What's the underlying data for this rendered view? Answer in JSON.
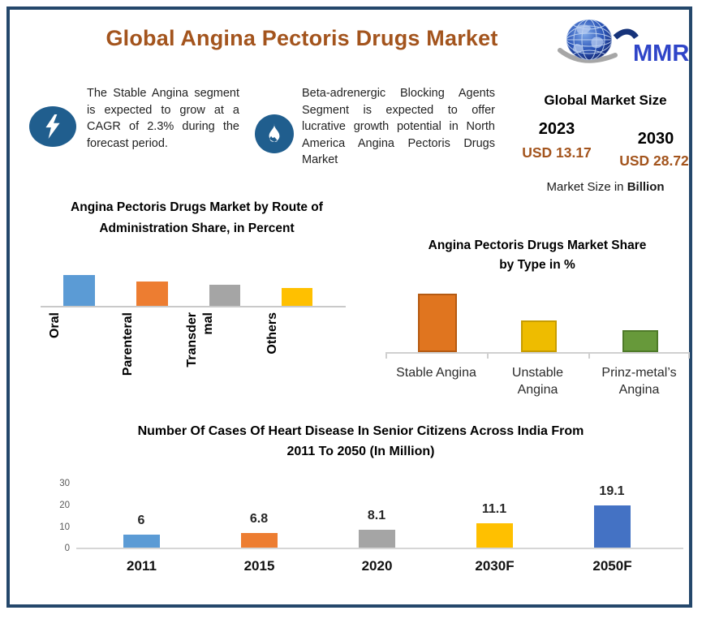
{
  "page": {
    "title": "Global Angina Pectoris Drugs Market",
    "border_color": "#24476b",
    "accent_color": "#a3541d"
  },
  "logo": {
    "text": "MMR",
    "icon": "globe-icon"
  },
  "highlights": [
    {
      "icon": "lightning-icon",
      "text": "The Stable Angina segment is expected to grow at a CAGR of 2.3% during the forecast period."
    },
    {
      "icon": "flame-icon",
      "text": "Beta-adrenergic Blocking Agents Segment is expected to offer lucrative growth potential in North America Angina Pectoris Drugs Market"
    }
  ],
  "market_size": {
    "title": "Global Market Size",
    "years": [
      {
        "year": "2023",
        "value": "USD 13.17"
      },
      {
        "year": "2030",
        "value": "USD 28.72"
      }
    ],
    "note_prefix": "Market Size in ",
    "note_bold": "Billion"
  },
  "chart_data": [
    {
      "type": "bar",
      "title": "Angina Pectoris Drugs Market by Route of Administration Share, in Percent",
      "title_lines": [
        "Angina Pectoris Drugs Market by Route of",
        "Administration Share, in Percent"
      ],
      "categories": [
        "Oral",
        "Parenteral",
        "Transdermal",
        "Others"
      ],
      "category_lines": [
        [
          "Oral"
        ],
        [
          "Parenteral"
        ],
        [
          "Transder",
          "mal"
        ],
        [
          "Others"
        ]
      ],
      "values": [
        44,
        35,
        30,
        25
      ],
      "values_estimated": true,
      "unit": "percent",
      "colors": [
        "#5b9bd5",
        "#ed7d31",
        "#a5a5a5",
        "#ffc000"
      ],
      "legend": "none",
      "grid": false
    },
    {
      "type": "bar",
      "title": "Angina Pectoris Drugs Market Share by Type in %",
      "title_lines": [
        "Angina Pectoris Drugs Market Share",
        "by Type in %"
      ],
      "categories": [
        "Stable Angina",
        "Unstable Angina",
        "Prinz-metal’s Angina"
      ],
      "category_lines": [
        [
          "Stable Angina"
        ],
        [
          "Unstable",
          "Angina"
        ],
        [
          "Prinz-metal’s",
          "Angina"
        ]
      ],
      "values": [
        50,
        26,
        17
      ],
      "values_estimated": true,
      "unit": "percent",
      "colors": [
        "#e0751f",
        "#eebc00",
        "#67993a"
      ],
      "border_colors": [
        "#b55a12",
        "#c79c00",
        "#4e7a28"
      ],
      "legend": "none",
      "grid": false
    },
    {
      "type": "bar",
      "title": "Number Of Cases Of Heart Disease In Senior Citizens Across India From 2011 To 2050 (In Million)",
      "title_lines": [
        "Number Of Cases Of Heart Disease In Senior Citizens Across India From",
        "2011 To 2050 (In Million)"
      ],
      "categories": [
        "2011",
        "2015",
        "2020",
        "2030F",
        "2050F"
      ],
      "values": [
        6,
        6.8,
        8.1,
        11.1,
        19.1
      ],
      "labels": [
        "6",
        "6.8",
        "8.1",
        "11.1",
        "19.1"
      ],
      "yticks": [
        "0",
        "10",
        "20",
        "30"
      ],
      "ylim": [
        0,
        30
      ],
      "ylabel": "",
      "xlabel": "",
      "colors": [
        "#5b9bd5",
        "#ed7d31",
        "#a5a5a5",
        "#ffc000",
        "#4472c4"
      ],
      "legend": "none",
      "grid": false
    }
  ]
}
